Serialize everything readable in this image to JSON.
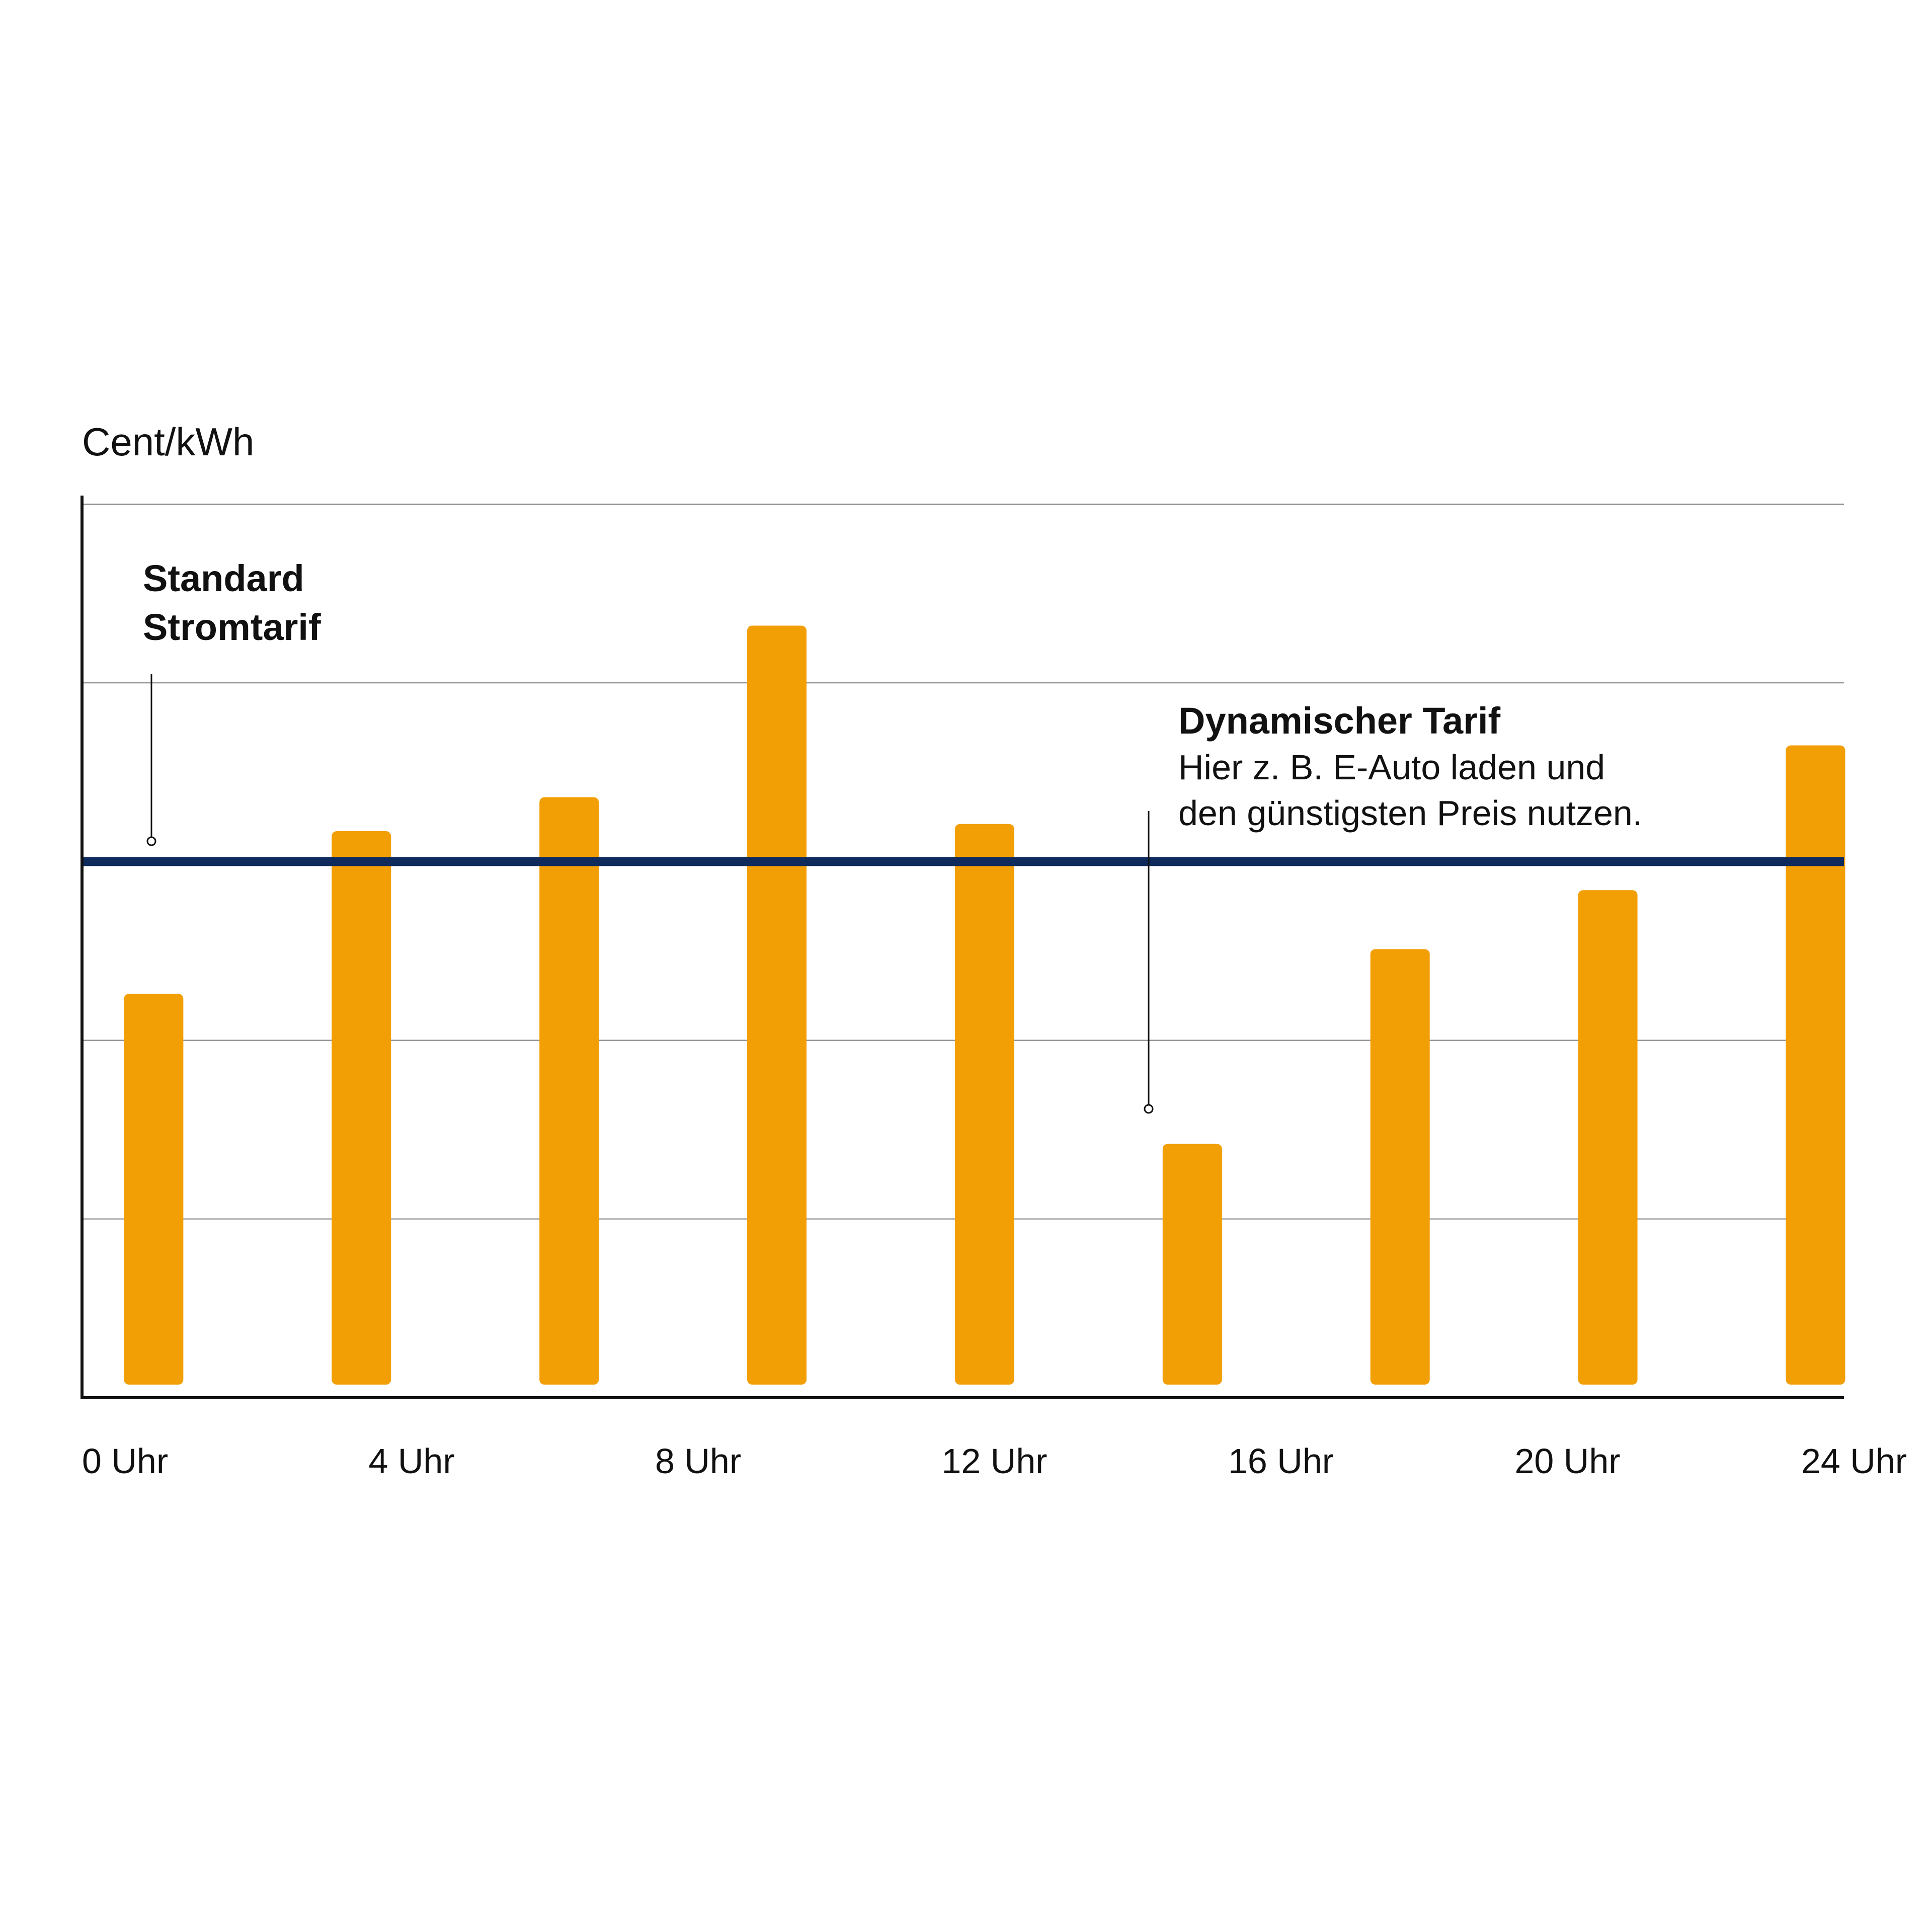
{
  "chart_data": {
    "type": "bar",
    "ylabel": "Cent/kWh",
    "x_tick_labels": [
      "0 Uhr",
      "4 Uhr",
      "8 Uhr",
      "12 Uhr",
      "16 Uhr",
      "20 Uhr",
      "24 Uhr"
    ],
    "x_range": [
      0,
      24
    ],
    "bar_positions_hours": [
      1.0,
      3.9,
      6.8,
      9.7,
      12.6,
      15.5,
      18.4,
      21.3,
      24.2
    ],
    "values": [
      2.26,
      3.17,
      3.36,
      4.32,
      3.21,
      1.42,
      2.51,
      2.84,
      3.65
    ],
    "ylim": [
      0,
      5
    ],
    "grid": true,
    "reference_line": {
      "label": "Standard Stromtarif",
      "value": 3.0,
      "color": "#0f2a5c"
    },
    "bar_color": "#f29f05",
    "annotations": {
      "standard": {
        "line1": "Standard",
        "line2": "Stromtarif"
      },
      "dynamic": {
        "title": "Dynamischer Tarif",
        "line1": "Hier z. B. E-Auto laden und",
        "line2": "den günstigsten Preis nutzen."
      }
    }
  }
}
